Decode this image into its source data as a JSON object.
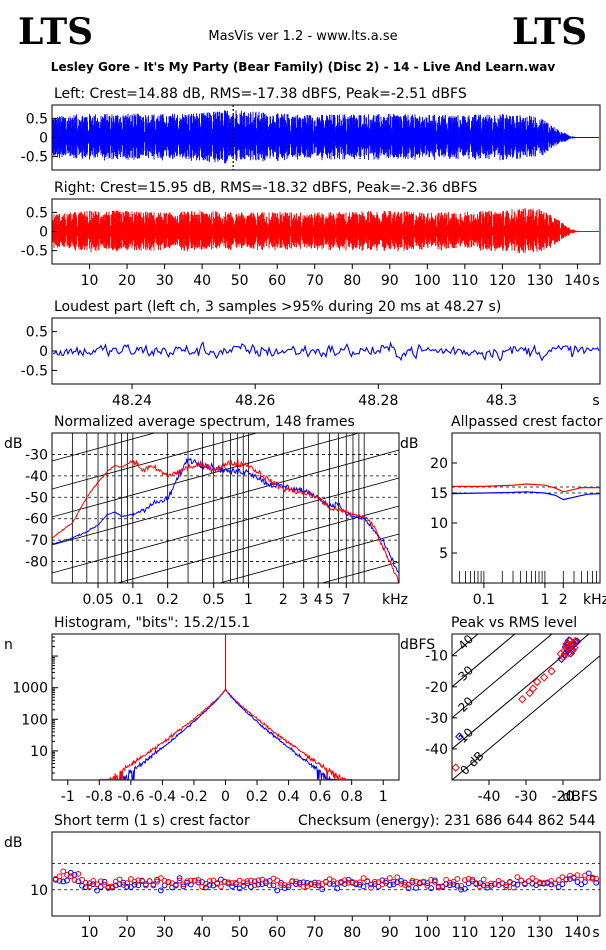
{
  "header": {
    "logo_left": "LTS",
    "logo_right": "LTS",
    "app_title": "MasVis ver 1.2 - www.lts.a.se",
    "file_title": "Lesley Gore - It's My Party (Bear Family) (Disc 2) - 14 - Live And Learn.wav"
  },
  "colors": {
    "left_channel": "#0000ff",
    "right_channel": "#ff0000",
    "frame": "#000000",
    "grid": "#000000"
  },
  "chart_data": [
    {
      "id": "left-waveform",
      "type": "line",
      "title": "Left: Crest=14.88 dB, RMS=-17.38 dBFS, Peak=-2.51 dBFS",
      "series": [
        {
          "name": "Left",
          "color": "#0000ff",
          "envelope_x": [
            0,
            5,
            10,
            20,
            30,
            40,
            48.27,
            60,
            70,
            80,
            90,
            100,
            110,
            120,
            130,
            135,
            138,
            140,
            145
          ],
          "envelope_y": [
            0.55,
            0.6,
            0.62,
            0.63,
            0.62,
            0.65,
            0.75,
            0.63,
            0.6,
            0.62,
            0.62,
            0.6,
            0.6,
            0.62,
            0.55,
            0.2,
            0.05,
            0.01,
            0.0
          ]
        }
      ],
      "marker_x": 48.27,
      "yticks": [
        0.5,
        0,
        -0.5
      ],
      "ytick_labels": [
        "0.5",
        "0",
        "-0.5"
      ],
      "xlim": [
        0,
        146
      ],
      "ylim": [
        -0.85,
        0.85
      ]
    },
    {
      "id": "right-waveform",
      "type": "line",
      "title": "Right: Crest=15.95 dB, RMS=-18.32 dBFS, Peak=-2.36 dBFS",
      "series": [
        {
          "name": "Right",
          "color": "#ff0000",
          "envelope_x": [
            0,
            5,
            10,
            20,
            30,
            40,
            50,
            60,
            70,
            80,
            90,
            100,
            110,
            120,
            125,
            130,
            135,
            138,
            140,
            145
          ],
          "envelope_y": [
            0.45,
            0.5,
            0.55,
            0.55,
            0.5,
            0.55,
            0.5,
            0.52,
            0.5,
            0.52,
            0.55,
            0.5,
            0.52,
            0.55,
            0.62,
            0.6,
            0.3,
            0.08,
            0.02,
            0.0
          ]
        }
      ],
      "xticks": [
        10,
        20,
        30,
        40,
        50,
        60,
        70,
        80,
        90,
        100,
        110,
        120,
        130,
        140
      ],
      "xtick_labels": [
        "10",
        "20",
        "30",
        "40",
        "50",
        "60",
        "70",
        "80",
        "90",
        "100",
        "110",
        "120",
        "130",
        "140"
      ],
      "xunit": "s",
      "yticks": [
        0.5,
        0,
        -0.5
      ],
      "ytick_labels": [
        "0.5",
        "0",
        "-0.5"
      ],
      "xlim": [
        0,
        146
      ],
      "ylim": [
        -0.85,
        0.85
      ]
    },
    {
      "id": "loudest-part",
      "type": "line",
      "title": "Loudest part (left  ch, 3 samples >95% during 20 ms at 48.27 s)",
      "series": [
        {
          "name": "Left",
          "color": "#0000ff"
        }
      ],
      "amplitude": 0.42,
      "xticks": [
        48.24,
        48.26,
        48.28,
        48.3
      ],
      "xtick_labels": [
        "48.24",
        "48.26",
        "48.28",
        "48.3"
      ],
      "xunit": "s",
      "yticks": [
        0.5,
        0,
        -0.5
      ],
      "ytick_labels": [
        "0.5",
        "0",
        "-0.5"
      ],
      "xlim": [
        48.227,
        48.316
      ],
      "ylim": [
        -0.85,
        0.85
      ]
    },
    {
      "id": "average-spectrum",
      "type": "line",
      "title": "Normalized average spectrum, 148 frames",
      "ylabel": "dB",
      "xunit": "kHz",
      "xscale": "log",
      "xlim": [
        0.02,
        20
      ],
      "ylim": [
        -90,
        -20
      ],
      "yticks": [
        -30,
        -40,
        -50,
        -60,
        -70,
        -80
      ],
      "ytick_labels": [
        "-30",
        "-40",
        "-50",
        "-60",
        "-70",
        "-80"
      ],
      "xticks": [
        0.05,
        0.1,
        0.2,
        0.5,
        1,
        2,
        3,
        4,
        5,
        7
      ],
      "xtick_labels": [
        "0.05",
        "0.1",
        "0.2",
        "0.5",
        "1",
        "2",
        "3",
        "4",
        "5",
        "7"
      ],
      "series": [
        {
          "name": "Left",
          "color": "#0000ff",
          "x": [
            0.02,
            0.03,
            0.04,
            0.05,
            0.06,
            0.07,
            0.08,
            0.1,
            0.12,
            0.15,
            0.2,
            0.25,
            0.3,
            0.4,
            0.5,
            0.7,
            1,
            1.5,
            2,
            3,
            4,
            5,
            6,
            7,
            8,
            10,
            12,
            15,
            20
          ],
          "y": [
            -72,
            -69,
            -66,
            -63,
            -58,
            -57,
            -59,
            -58,
            -56,
            -53,
            -51,
            -40,
            -32,
            -35,
            -36,
            -38,
            -38,
            -44,
            -45,
            -47,
            -50,
            -54,
            -53,
            -58,
            -59,
            -60,
            -65,
            -72,
            -86
          ]
        },
        {
          "name": "Right",
          "color": "#ff0000",
          "x": [
            0.02,
            0.03,
            0.04,
            0.05,
            0.06,
            0.07,
            0.08,
            0.1,
            0.12,
            0.15,
            0.2,
            0.25,
            0.3,
            0.4,
            0.5,
            0.7,
            1,
            1.5,
            2,
            3,
            4,
            5,
            6,
            7,
            8,
            10,
            12,
            15,
            20
          ],
          "y": [
            -69,
            -62,
            -50,
            -43,
            -38,
            -35,
            -36,
            -33,
            -37,
            -36,
            -40,
            -38,
            -36,
            -35,
            -37,
            -34,
            -35,
            -42,
            -46,
            -48,
            -50,
            -55,
            -56,
            -57,
            -58,
            -59,
            -63,
            -75,
            -89
          ]
        }
      ]
    },
    {
      "id": "allpassed-crest",
      "type": "line",
      "title": "Allpassed crest factor",
      "ylabel": "dB",
      "xunit": "kHz",
      "xscale": "log",
      "xlim": [
        0.03,
        8
      ],
      "ylim": [
        0,
        25
      ],
      "yticks": [
        20,
        15,
        10,
        5
      ],
      "ytick_labels": [
        "20",
        "15",
        "10",
        "5"
      ],
      "xticks": [
        0.1,
        1,
        2
      ],
      "xtick_labels": [
        "0.1",
        "1",
        "2"
      ],
      "reference_lines": [
        16.0,
        15.0
      ],
      "series": [
        {
          "name": "Left",
          "color": "#0000ff",
          "x": [
            0.03,
            0.1,
            0.3,
            0.5,
            1,
            1.5,
            2,
            3,
            4,
            5,
            8
          ],
          "y": [
            14.9,
            15.0,
            15.1,
            15.2,
            15.0,
            14.6,
            13.9,
            14.3,
            14.6,
            14.8,
            14.9
          ]
        },
        {
          "name": "Right",
          "color": "#ff0000",
          "x": [
            0.03,
            0.1,
            0.3,
            0.5,
            1,
            1.5,
            2,
            3,
            4,
            5,
            8
          ],
          "y": [
            16.1,
            16.1,
            16.3,
            16.5,
            16.3,
            15.8,
            15.2,
            15.6,
            15.9,
            15.9,
            15.9
          ]
        }
      ]
    },
    {
      "id": "histogram",
      "type": "line",
      "title": "Histogram, \"bits\": 15.2/15.1",
      "ylabel": "n",
      "yscale": "log",
      "xlim": [
        -1.1,
        1.1
      ],
      "ylim": [
        1.2,
        50000
      ],
      "yticks": [
        1000,
        100,
        10
      ],
      "ytick_labels": [
        "1000",
        "100",
        "10"
      ],
      "xticks": [
        -1,
        -0.8,
        -0.6,
        -0.4,
        -0.2,
        0,
        0.2,
        0.4,
        0.6,
        0.8,
        1
      ],
      "xtick_labels": [
        "-1",
        "-0.8",
        "-0.6",
        "-0.4",
        "-0.2",
        "0",
        "0.2",
        "0.4",
        "0.6",
        "0.8",
        "1"
      ],
      "series": [
        {
          "name": "Left",
          "color": "#0000ff",
          "peak": 900,
          "extent": 0.72
        },
        {
          "name": "Right",
          "color": "#ff0000",
          "peak": 900,
          "extent": 0.8
        }
      ]
    },
    {
      "id": "peak-vs-rms",
      "type": "scatter",
      "title": "Peak vs RMS level",
      "ylabel": "dBFS",
      "xunit": "dBFS",
      "xlim": [
        -50,
        -10
      ],
      "ylim": [
        -50,
        -3
      ],
      "yticks": [
        -10,
        -20,
        -30,
        -40
      ],
      "ytick_labels": [
        "-10",
        "-20",
        "-30",
        "-40"
      ],
      "xticks": [
        -40,
        -30,
        -20
      ],
      "xtick_labels": [
        "-40",
        "-30",
        "-20"
      ],
      "crest_labels": [
        "40",
        "30",
        "20",
        "10",
        "0 dB"
      ],
      "crest_values": [
        40,
        30,
        20,
        10,
        0
      ],
      "series": [
        {
          "name": "Left",
          "color": "#0000ff",
          "x": [
            -19.5,
            -18.8,
            -18.2,
            -17.6,
            -17.1,
            -16.6,
            -18.4,
            -17.9,
            -19.2,
            -16.2,
            -17.4,
            -18.6,
            -20.4,
            -48
          ],
          "y": [
            -9.5,
            -8.4,
            -7.6,
            -6.9,
            -6.3,
            -5.8,
            -5.1,
            -9.2,
            -7.2,
            -5.4,
            -8.1,
            -6.2,
            -11.0,
            -36
          ]
        },
        {
          "name": "Right",
          "color": "#ff0000",
          "x": [
            -20.6,
            -19.6,
            -18.9,
            -18.3,
            -17.7,
            -17.2,
            -16.7,
            -19.9,
            -18.5,
            -17.5,
            -16.9,
            -19.1,
            -18.1,
            -23.1,
            -25.1,
            -27.0,
            -29.0,
            -31.0,
            -28.1,
            -49
          ],
          "y": [
            -9.4,
            -8.3,
            -7.5,
            -7.1,
            -6.4,
            -5.9,
            -5.3,
            -10.4,
            -9.1,
            -8.4,
            -7.4,
            -6.2,
            -5.2,
            -15.0,
            -17.0,
            -18.4,
            -22.0,
            -24.0,
            -20.6,
            -46
          ]
        }
      ]
    },
    {
      "id": "short-term-crest",
      "type": "scatter",
      "title": "Short term (1 s) crest factor",
      "annotation": "Checksum (energy):  231 686 644 862 544",
      "ylabel": "dB",
      "xunit": "s",
      "xlim": [
        0,
        146
      ],
      "ylim": [
        5,
        21
      ],
      "yticks": [
        10
      ],
      "ytick_labels": [
        "10"
      ],
      "reference_lines": [
        15,
        10
      ],
      "xticks": [
        10,
        20,
        30,
        40,
        50,
        60,
        70,
        80,
        90,
        100,
        110,
        120,
        130,
        140
      ],
      "xtick_labels": [
        "10",
        "20",
        "30",
        "40",
        "50",
        "60",
        "70",
        "80",
        "90",
        "100",
        "110",
        "120",
        "130",
        "140"
      ],
      "series": [
        {
          "name": "Left",
          "color": "#0000ff",
          "mean": 11.0,
          "spread": 1.3
        },
        {
          "name": "Right",
          "color": "#ff0000",
          "mean": 11.4,
          "spread": 1.1
        }
      ]
    }
  ]
}
